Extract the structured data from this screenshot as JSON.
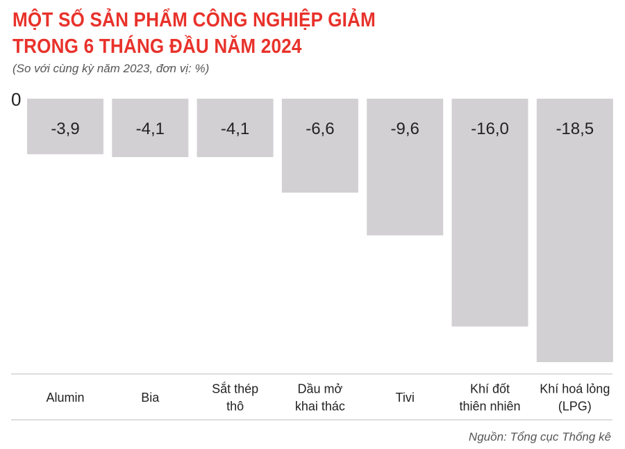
{
  "title_line1": "MỘT SỐ SẢN PHẨM CÔNG NGHIỆP GIẢM",
  "title_line2": "TRONG 6 THÁNG ĐẦU NĂM 2024",
  "subtitle": "(So với cùng kỳ năm 2023, đơn vị: %)",
  "source": "Nguồn: Tổng cục Thống kê",
  "colors": {
    "title": "#e8322b",
    "bar": "#d3d0d4"
  },
  "chart_data": {
    "type": "bar",
    "title": "MỘT SỐ SẢN PHẨM CÔNG NGHIỆP GIẢM TRONG 6 THÁNG ĐẦU NĂM 2024",
    "subtitle": "(So với cùng kỳ năm 2023, đơn vị: %)",
    "zero_label": "0",
    "categories": [
      [
        "Alumin"
      ],
      [
        "Bia"
      ],
      [
        "Sắt thép",
        "thô"
      ],
      [
        "Dầu mở",
        "khai thác"
      ],
      [
        "Tivi"
      ],
      [
        "Khí đốt",
        "thiên nhiên"
      ],
      [
        "Khí hoá lỏng",
        "(LPG)"
      ]
    ],
    "values": [
      -3.9,
      -4.1,
      -4.1,
      -6.6,
      -9.6,
      -16.0,
      -18.5
    ],
    "value_labels": [
      "-3,9",
      "-4,1",
      "-4,1",
      "-6,6",
      "-9,6",
      "-16,0",
      "-18,5"
    ],
    "ylim": [
      -18.5,
      0
    ],
    "grid": false
  }
}
